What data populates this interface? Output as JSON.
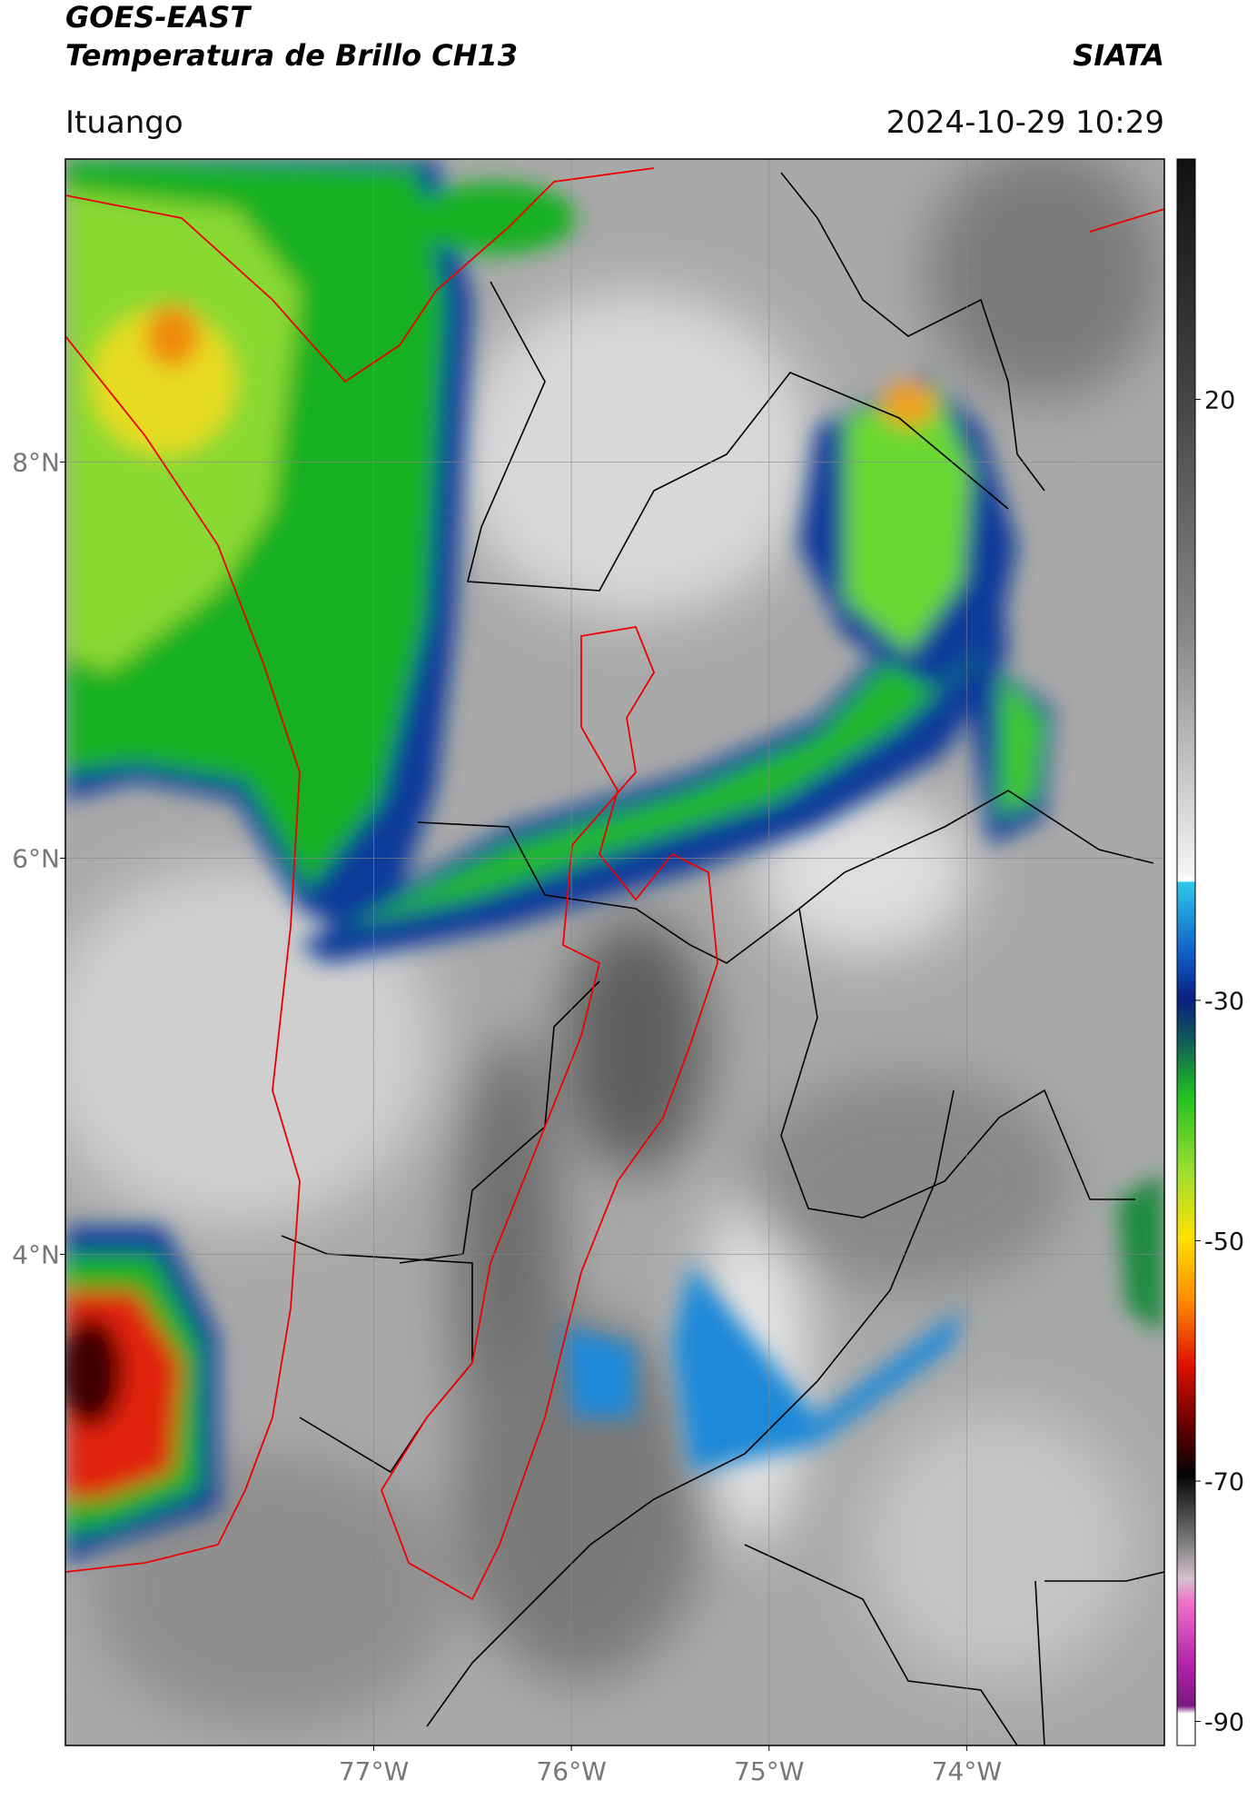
{
  "chart_data": {
    "type": "map",
    "title": "GOES-EAST",
    "subtitle": "Temperatura de Brillo CH13",
    "source": "SIATA",
    "region": "Ituango",
    "datetime": "2024-10-29 10:29",
    "xlim": [
      -78.56,
      -73.0
    ],
    "ylim": [
      1.52,
      9.53
    ],
    "xticks": [
      {
        "value": -77,
        "label": "77°W"
      },
      {
        "value": -76,
        "label": "76°W"
      },
      {
        "value": -75,
        "label": "75°W"
      },
      {
        "value": -74,
        "label": "74°W"
      }
    ],
    "yticks": [
      {
        "value": 8,
        "label": "8°N"
      },
      {
        "value": 6,
        "label": "6°N"
      },
      {
        "value": 4,
        "label": "4°N"
      }
    ],
    "grid": true,
    "colorbar_lim": [
      -92,
      40
    ],
    "colorbar_ticks": [
      20,
      -30,
      -50,
      -70,
      -90
    ]
  }
}
